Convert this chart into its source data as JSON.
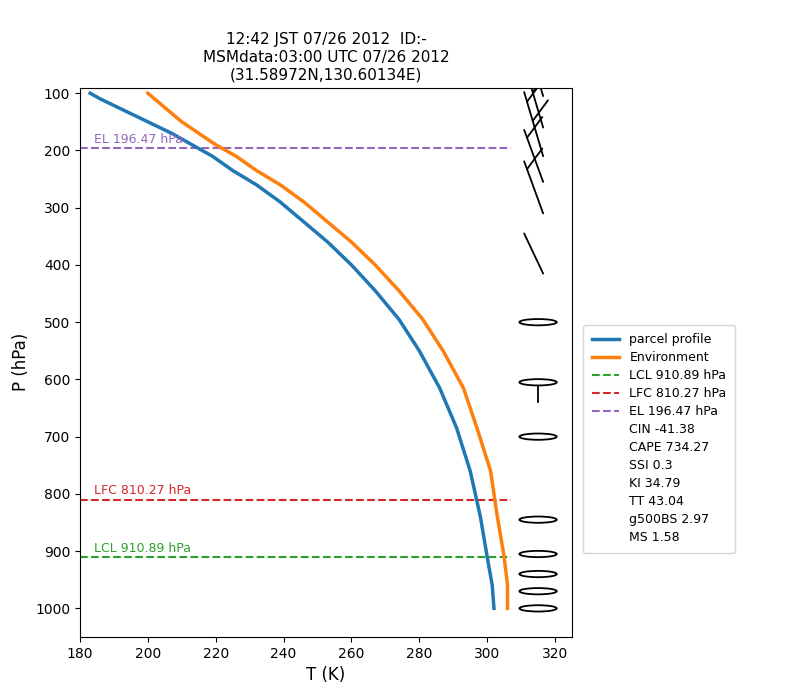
{
  "title": "12:42 JST 07/26 2012  ID:-\nMSMdata:03:00 UTC 07/26 2012\n(31.58972N,130.60134E)",
  "xlabel": "T (K)",
  "ylabel": "P (hPa)",
  "xlim": [
    180,
    325
  ],
  "ylim_p": [
    1050,
    90
  ],
  "parcel_T": [
    183,
    186,
    193,
    200,
    207,
    213,
    219,
    225,
    232,
    239,
    246,
    253,
    260,
    267,
    274,
    280,
    286,
    291,
    295,
    298,
    300,
    301.5,
    302
  ],
  "parcel_P": [
    100,
    110,
    130,
    150,
    170,
    190,
    210,
    235,
    260,
    290,
    325,
    360,
    400,
    445,
    495,
    550,
    615,
    685,
    760,
    840,
    910,
    960,
    1000
  ],
  "env_T": [
    200,
    202,
    206,
    210,
    215,
    220,
    226,
    232,
    239,
    246,
    253,
    260,
    267,
    274,
    281,
    287,
    293,
    297,
    301,
    303,
    305,
    306,
    306
  ],
  "env_P": [
    100,
    110,
    130,
    150,
    170,
    190,
    210,
    235,
    260,
    290,
    325,
    360,
    400,
    445,
    495,
    550,
    615,
    685,
    760,
    840,
    910,
    960,
    1000
  ],
  "lcl_p": 910.89,
  "lfc_p": 810.27,
  "el_p": 196.47,
  "color_parcel": "#1f77b4",
  "color_env": "#ff7f0e",
  "color_lcl": "#2ca02c",
  "color_lfc": "#d62728",
  "color_el": "#9467bd",
  "legend_entries": [
    {
      "label": "parcel profile",
      "color": "#1f77b4",
      "lw": 2.5,
      "ls": "solid"
    },
    {
      "label": "Environment",
      "color": "#ff7f0e",
      "lw": 2.5,
      "ls": "solid"
    },
    {
      "label": "LCL 910.89 hPa",
      "color": "#2ca02c",
      "lw": 1.5,
      "ls": "dashed"
    },
    {
      "label": "LFC 810.27 hPa",
      "color": "#d62728",
      "lw": 1.5,
      "ls": "dashed"
    },
    {
      "label": "EL 196.47 hPa",
      "color": "#9467bd",
      "lw": 1.5,
      "ls": "dashed"
    }
  ],
  "text_entries": [
    "CIN -41.38",
    "CAPE 734.27",
    "SSI 0.3",
    "KI 34.79",
    "TT 43.04",
    "g500BS 2.97",
    "MS 1.58"
  ],
  "wind_barbs": [
    {
      "p": 105,
      "spd": 25,
      "ang": -45
    },
    {
      "p": 160,
      "spd": 20,
      "ang": -45,
      "barbs": 2
    },
    {
      "p": 210,
      "spd": 18,
      "ang": -45,
      "barbs": 2
    },
    {
      "p": 255,
      "spd": 15,
      "ang": -45,
      "barbs": 1
    },
    {
      "p": 305,
      "spd": 5,
      "ang": -45,
      "barbs": 1
    },
    {
      "p": 415,
      "spd": 3,
      "ang": -30,
      "barbs": 0
    },
    {
      "p": 500,
      "spd": 3,
      "ang": -30,
      "barbs": 0
    },
    {
      "p": 615,
      "spd": 5,
      "ang": -30,
      "barbs": 0
    },
    {
      "p": 700,
      "spd": 8,
      "ang": -20,
      "barbs": 0
    },
    {
      "p": 845,
      "spd": 5,
      "ang": -15,
      "barbs": 0
    },
    {
      "p": 905,
      "spd": 3,
      "ang": -10,
      "barbs": 0
    },
    {
      "p": 940,
      "spd": 3,
      "ang": -10,
      "barbs": 0
    },
    {
      "p": 970,
      "spd": 2,
      "ang": -10,
      "barbs": 0
    },
    {
      "p": 1000,
      "spd": 2,
      "ang": -10,
      "barbs": 0
    }
  ]
}
